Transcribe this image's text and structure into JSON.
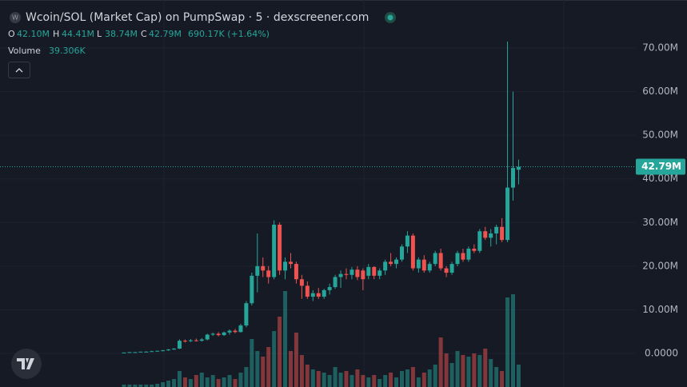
{
  "chart_data": {
    "type": "candlestick",
    "title": "Wcoin/SOL (Market Cap) on PumpSwap · 5 · dexscreener.com",
    "header": {
      "open_key": "O",
      "open_label": "42.10M",
      "high_key": "H",
      "high_label": "44.41M",
      "low_key": "L",
      "low_label": "38.74M",
      "close_key": "C",
      "close_label": "42.79M",
      "change_label": "690.17K (+1.64%)"
    },
    "volume_title": "Volume",
    "volume_label": "39.306K",
    "price_label": "42.79M",
    "up_color": "#26a69a",
    "down_color": "#ef5350",
    "open": [
      100000,
      200000,
      300000,
      300000,
      400000,
      400000,
      500000,
      600000,
      700000,
      900000,
      1100000,
      2900000,
      2800000,
      3000000,
      2900000,
      3200000,
      4300000,
      4500000,
      4200000,
      4800000,
      5200000,
      4900000,
      6400000,
      11500000,
      17800000,
      20000000,
      19000000,
      17500000,
      29500000,
      19000000,
      21000000,
      20500000,
      17000000,
      15500000,
      13000000,
      13800000,
      13000000,
      14500000,
      15200000,
      17500000,
      18200000,
      18000000,
      19200000,
      19000000,
      17800000,
      19800000,
      17800000,
      19000000,
      21000000,
      20500000,
      21500000,
      24500000,
      27000000,
      19500000,
      21500000,
      19000000,
      20500000,
      23000000,
      19500000,
      18500000,
      20500000,
      23000000,
      21500000,
      24000000,
      23500000,
      28000000,
      26500000,
      27500000,
      29000000,
      26000000,
      38000000,
      42100000
    ],
    "high": [
      200000,
      300000,
      300000,
      400000,
      500000,
      600000,
      600000,
      800000,
      1000000,
      1200000,
      3200000,
      3200000,
      3300000,
      3400000,
      3500000,
      4500000,
      4800000,
      4900000,
      5000000,
      5500000,
      5600000,
      6800000,
      12000000,
      18500000,
      27500000,
      22000000,
      20000000,
      30500000,
      30000000,
      22000000,
      23000000,
      21000000,
      18000000,
      16500000,
      14500000,
      15000000,
      14800000,
      16000000,
      18000000,
      19000000,
      19500000,
      19800000,
      20000000,
      19500000,
      20500000,
      20000000,
      19500000,
      21500000,
      23000000,
      22000000,
      25000000,
      28000000,
      27500000,
      22000000,
      22500000,
      21000000,
      23500000,
      24000000,
      20000000,
      21000000,
      23500000,
      24000000,
      24500000,
      25000000,
      28500000,
      29000000,
      28500000,
      29500000,
      31000000,
      71500000,
      60000000,
      44410000
    ],
    "low": [
      100000,
      200000,
      200000,
      300000,
      300000,
      400000,
      400000,
      500000,
      600000,
      800000,
      1000000,
      2500000,
      2600000,
      2700000,
      2700000,
      3000000,
      4000000,
      3900000,
      4000000,
      4300000,
      4600000,
      4800000,
      6000000,
      11000000,
      14000000,
      17500000,
      16000000,
      17000000,
      18000000,
      17000000,
      19500000,
      16000000,
      12500000,
      12500000,
      12000000,
      12500000,
      12500000,
      13500000,
      14800000,
      15000000,
      17000000,
      17000000,
      16800000,
      14500000,
      17000000,
      17000000,
      17000000,
      18000000,
      20000000,
      19500000,
      21000000,
      23000000,
      19000000,
      18500000,
      18500000,
      18500000,
      20000000,
      19000000,
      17500000,
      18000000,
      20000000,
      21000000,
      21000000,
      23000000,
      23000000,
      26000000,
      24500000,
      25000000,
      25500000,
      25500000,
      35000000,
      38740000
    ],
    "close": [
      200000,
      300000,
      300000,
      400000,
      400000,
      500000,
      600000,
      700000,
      900000,
      1100000,
      2900000,
      2800000,
      3000000,
      2900000,
      3200000,
      4300000,
      4500000,
      4200000,
      4800000,
      5200000,
      4900000,
      6400000,
      11500000,
      17800000,
      20000000,
      19000000,
      17500000,
      29500000,
      19000000,
      21000000,
      20500000,
      17000000,
      15500000,
      13000000,
      13800000,
      13000000,
      14500000,
      15200000,
      17500000,
      18200000,
      18000000,
      19200000,
      17500000,
      17000000,
      19800000,
      17800000,
      19000000,
      21000000,
      20500000,
      21500000,
      24500000,
      27000000,
      19500000,
      21500000,
      19000000,
      20500000,
      23000000,
      19500000,
      18500000,
      20500000,
      23000000,
      21500000,
      24000000,
      23500000,
      28000000,
      26500000,
      27500000,
      29000000,
      26000000,
      38000000,
      42500000,
      42790000
    ],
    "volume": [
      4200,
      4200,
      4200,
      4200,
      4200,
      4200,
      5600,
      8400,
      11200,
      14000,
      28000,
      16800,
      14000,
      21000,
      25200,
      16800,
      21000,
      14000,
      16800,
      21000,
      14000,
      25200,
      35000,
      84000,
      63000,
      53200,
      70000,
      98000,
      123200,
      168000,
      63000,
      95200,
      56000,
      39200,
      30800,
      28000,
      25200,
      21000,
      35000,
      25200,
      28000,
      21000,
      30800,
      21000,
      16800,
      21000,
      14000,
      21000,
      25200,
      16800,
      28000,
      30800,
      35000,
      16800,
      25200,
      30800,
      39200,
      86800,
      58800,
      42000,
      63000,
      56000,
      53200,
      58800,
      56000,
      67200,
      49000,
      35000,
      28000,
      156800,
      162400,
      39306
    ],
    "ylim": [
      -7700000,
      81000000
    ],
    "yticks": [
      {
        "value": 0,
        "label": "0.0000"
      },
      {
        "value": 10000000,
        "label": "10.00M"
      },
      {
        "value": 20000000,
        "label": "20.00M"
      },
      {
        "value": 30000000,
        "label": "30.00M"
      },
      {
        "value": 40000000,
        "label": "40.00M"
      },
      {
        "value": 50000000,
        "label": "50.00M"
      },
      {
        "value": 60000000,
        "label": "60.00M"
      },
      {
        "value": 70000000,
        "label": "70.00M"
      }
    ],
    "grid": true
  }
}
